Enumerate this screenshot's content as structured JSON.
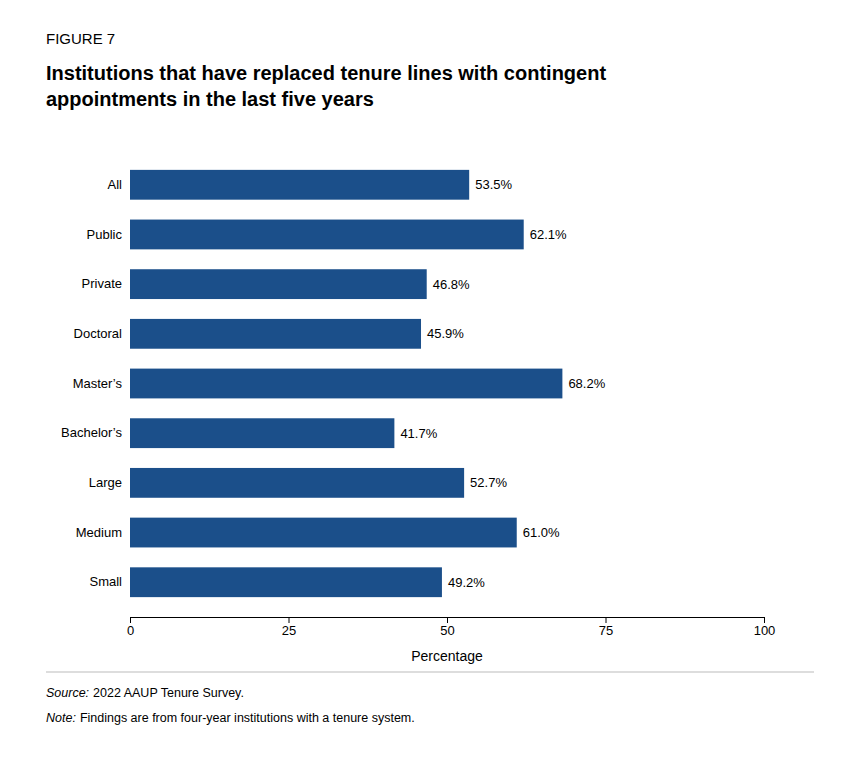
{
  "chart_data": {
    "type": "bar",
    "orientation": "horizontal",
    "title": "Institutions that have replaced tenure lines with contingent\nappointments in the last five years",
    "annotations": [
      "FIGURE 7",
      "Source:",
      "2022 AAUP Tenure Survey.",
      "Note:",
      "Findings are from four-year institutions with a tenure system."
    ],
    "categories": [
      "All",
      "Public",
      "Private",
      "Doctoral",
      "Master’s",
      "Bachelor’s",
      "Large",
      "Medium",
      "Small"
    ],
    "values": [
      53.5,
      62.1,
      46.8,
      45.9,
      68.2,
      41.7,
      52.7,
      61.0,
      49.2
    ],
    "value_labels": [
      "53.5%",
      "62.1%",
      "46.8%",
      "45.9%",
      "68.2%",
      "41.7%",
      "52.7%",
      "61.0%",
      "49.2%"
    ],
    "data_labels": true,
    "color": "#1B4F8A",
    "xlabel": "Percentage",
    "xlim": [
      0,
      100
    ],
    "xticks": [
      0,
      25,
      50,
      75,
      100
    ],
    "grid": false
  }
}
